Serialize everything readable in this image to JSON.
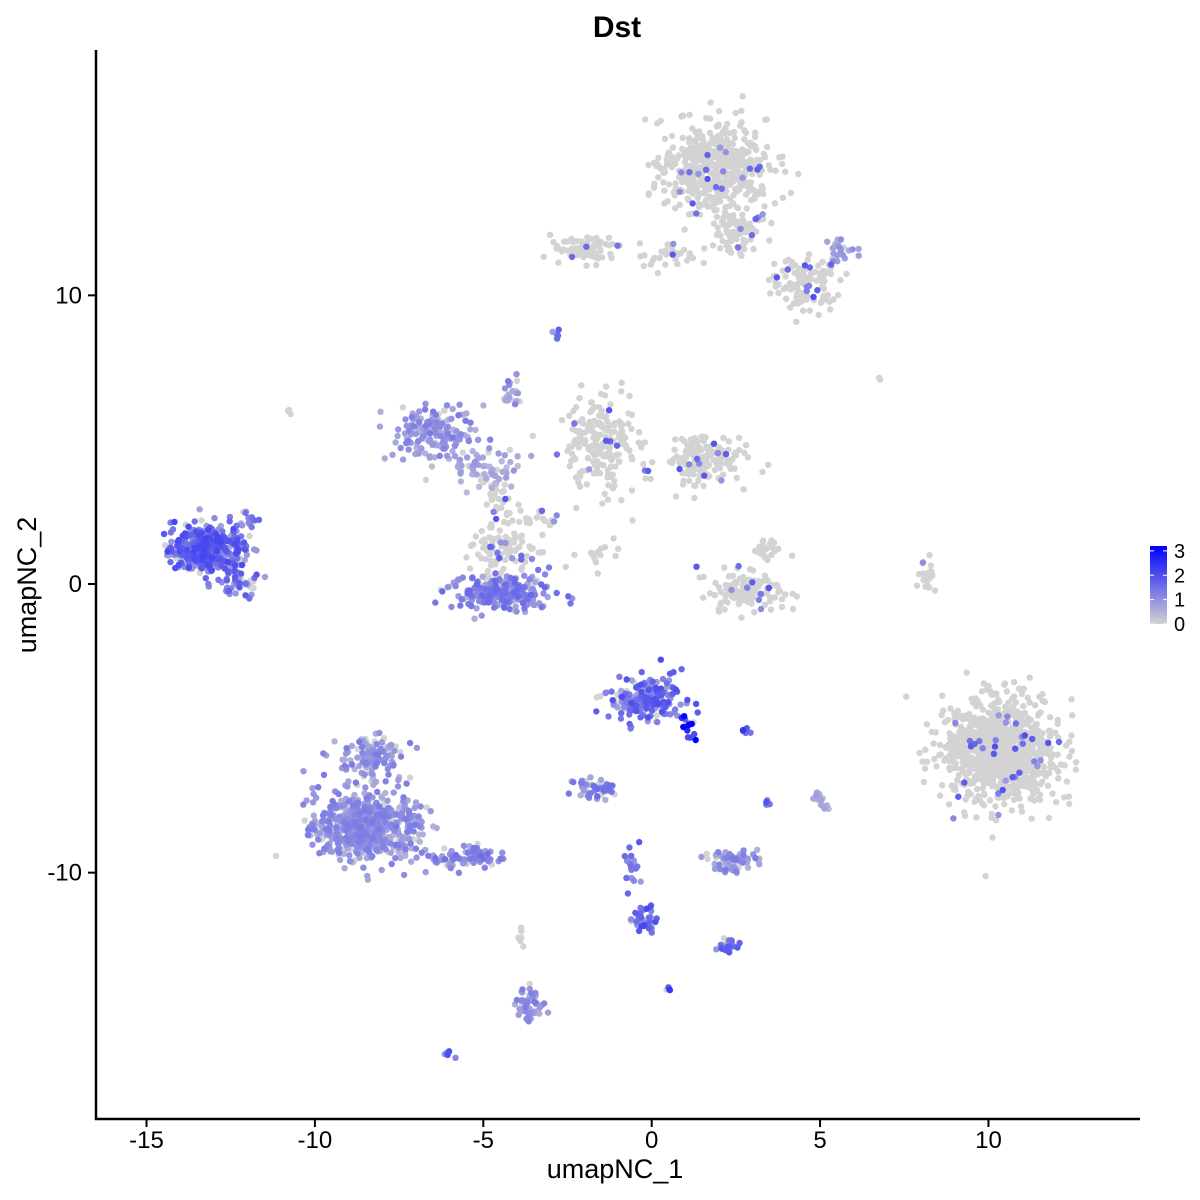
{
  "chart_data": {
    "type": "scatter",
    "title": "Dst",
    "xlabel": "umapNC_1",
    "ylabel": "umapNC_2",
    "xlim": [
      -16.5,
      14.5
    ],
    "ylim": [
      -18.5,
      18.5
    ],
    "x_ticks": [
      -15,
      -10,
      -5,
      0,
      5,
      10
    ],
    "x_tick_labels": [
      "-15",
      "-10",
      "-5",
      "0",
      "5",
      "10"
    ],
    "y_ticks": [
      -10,
      0,
      10
    ],
    "y_tick_labels": [
      "-10",
      "0",
      "10"
    ],
    "grid": false,
    "color_scale": {
      "low_color": "#d3d3d3",
      "high_color": "#0000ff",
      "min": 0,
      "max": 3.2,
      "legend_ticks": [
        0,
        1,
        2,
        3
      ],
      "legend_labels": [
        "0",
        "1",
        "2",
        "3"
      ],
      "legend_position": "right"
    },
    "clusters": [
      {
        "cx": 1.8,
        "cy": 14.5,
        "sx": 1.3,
        "sy": 1.3,
        "n": 480,
        "expr": 0.05
      },
      {
        "cx": 2.6,
        "cy": 12.2,
        "sx": 0.7,
        "sy": 0.8,
        "n": 90,
        "expr": 0.1
      },
      {
        "cx": 4.5,
        "cy": 10.4,
        "sx": 0.9,
        "sy": 0.8,
        "n": 120,
        "expr": 0.3
      },
      {
        "cx": 5.6,
        "cy": 11.6,
        "sx": 0.4,
        "sy": 0.4,
        "n": 25,
        "expr": 0.8
      },
      {
        "cx": -2.0,
        "cy": 11.6,
        "sx": 0.8,
        "sy": 0.4,
        "n": 80,
        "expr": 0.08
      },
      {
        "cx": 0.5,
        "cy": 11.4,
        "sx": 1.0,
        "sy": 0.4,
        "n": 30,
        "expr": 0.05
      },
      {
        "cx": -1.5,
        "cy": 5.0,
        "sx": 0.9,
        "sy": 1.4,
        "n": 200,
        "expr": 0.05
      },
      {
        "cx": 1.5,
        "cy": 4.3,
        "sx": 1.1,
        "sy": 0.7,
        "n": 160,
        "expr": 0.08
      },
      {
        "cx": -6.5,
        "cy": 5.2,
        "sx": 1.0,
        "sy": 0.8,
        "n": 150,
        "expr": 1.0
      },
      {
        "cx": -5.0,
        "cy": 4.0,
        "sx": 1.0,
        "sy": 0.6,
        "n": 60,
        "expr": 0.7
      },
      {
        "cx": -4.5,
        "cy": -0.3,
        "sx": 1.2,
        "sy": 0.5,
        "n": 280,
        "expr": 1.2
      },
      {
        "cx": -4.4,
        "cy": 1.2,
        "sx": 1.0,
        "sy": 0.6,
        "n": 80,
        "expr": 0.4
      },
      {
        "cx": -4.6,
        "cy": 2.8,
        "sx": 0.3,
        "sy": 0.8,
        "n": 30,
        "expr": 0.2
      },
      {
        "cx": -13.2,
        "cy": 1.2,
        "sx": 0.9,
        "sy": 0.7,
        "n": 450,
        "expr": 1.6
      },
      {
        "cx": -12.3,
        "cy": 0.0,
        "sx": 0.4,
        "sy": 0.3,
        "n": 40,
        "expr": 1.4
      },
      {
        "cx": -12.0,
        "cy": 2.2,
        "sx": 0.3,
        "sy": 0.4,
        "n": 15,
        "expr": 1.2
      },
      {
        "cx": 2.8,
        "cy": -0.3,
        "sx": 0.9,
        "sy": 0.6,
        "n": 130,
        "expr": 0.1
      },
      {
        "cx": 3.4,
        "cy": 1.2,
        "sx": 0.3,
        "sy": 0.4,
        "n": 25,
        "expr": 0.1
      },
      {
        "cx": 8.2,
        "cy": 0.2,
        "sx": 0.2,
        "sy": 0.6,
        "n": 20,
        "expr": 0.05
      },
      {
        "cx": 10.4,
        "cy": -5.8,
        "sx": 1.4,
        "sy": 1.5,
        "n": 950,
        "expr": 0.05
      },
      {
        "cx": -0.2,
        "cy": -4.0,
        "sx": 0.9,
        "sy": 0.6,
        "n": 200,
        "expr": 1.5
      },
      {
        "cx": 1.1,
        "cy": -5.0,
        "sx": 0.2,
        "sy": 0.4,
        "n": 15,
        "expr": 3.0
      },
      {
        "cx": -8.5,
        "cy": -8.4,
        "sx": 1.3,
        "sy": 1.0,
        "n": 620,
        "expr": 1.0
      },
      {
        "cx": -8.3,
        "cy": -6.0,
        "sx": 0.8,
        "sy": 0.6,
        "n": 120,
        "expr": 1.0
      },
      {
        "cx": -5.5,
        "cy": -9.5,
        "sx": 0.9,
        "sy": 0.3,
        "n": 90,
        "expr": 1.1
      },
      {
        "cx": -1.7,
        "cy": -7.1,
        "sx": 0.5,
        "sy": 0.3,
        "n": 50,
        "expr": 1.2
      },
      {
        "cx": 2.4,
        "cy": -9.6,
        "sx": 0.6,
        "sy": 0.3,
        "n": 70,
        "expr": 1.0
      },
      {
        "cx": -0.2,
        "cy": -11.6,
        "sx": 0.3,
        "sy": 0.4,
        "n": 40,
        "expr": 1.6
      },
      {
        "cx": -0.6,
        "cy": -9.8,
        "sx": 0.2,
        "sy": 0.6,
        "n": 20,
        "expr": 1.6
      },
      {
        "cx": 2.3,
        "cy": -12.5,
        "sx": 0.3,
        "sy": 0.2,
        "n": 25,
        "expr": 1.4
      },
      {
        "cx": -3.6,
        "cy": -14.6,
        "sx": 0.3,
        "sy": 0.5,
        "n": 50,
        "expr": 1.0
      },
      {
        "cx": 5.0,
        "cy": -7.5,
        "sx": 0.2,
        "sy": 0.3,
        "n": 15,
        "expr": 0.6
      },
      {
        "cx": 2.8,
        "cy": -5.1,
        "sx": 0.1,
        "sy": 0.1,
        "n": 6,
        "expr": 1.8
      },
      {
        "cx": 3.4,
        "cy": -7.6,
        "sx": 0.1,
        "sy": 0.1,
        "n": 6,
        "expr": 1.8
      },
      {
        "cx": 0.5,
        "cy": -14.0,
        "sx": 0.1,
        "sy": 0.1,
        "n": 5,
        "expr": 1.8
      },
      {
        "cx": -6.0,
        "cy": -16.3,
        "sx": 0.15,
        "sy": 0.1,
        "n": 6,
        "expr": 1.6
      },
      {
        "cx": -3.5,
        "cy": 2.3,
        "sx": 0.8,
        "sy": 0.4,
        "n": 20,
        "expr": 0.2
      },
      {
        "cx": -1.5,
        "cy": 1.0,
        "sx": 0.8,
        "sy": 0.4,
        "n": 15,
        "expr": 0.05
      },
      {
        "cx": -4.2,
        "cy": 6.8,
        "sx": 0.2,
        "sy": 0.5,
        "n": 20,
        "expr": 1.0
      },
      {
        "cx": -2.8,
        "cy": 8.7,
        "sx": 0.1,
        "sy": 0.2,
        "n": 5,
        "expr": 1.5
      },
      {
        "cx": -10.8,
        "cy": 6.0,
        "sx": 0.1,
        "sy": 0.1,
        "n": 3,
        "expr": 0.1
      },
      {
        "cx": 6.8,
        "cy": 7.0,
        "sx": 0.1,
        "sy": 0.1,
        "n": 2,
        "expr": 0.1
      },
      {
        "cx": -3.9,
        "cy": -12.0,
        "sx": 0.1,
        "sy": 0.4,
        "n": 6,
        "expr": 0.5
      }
    ]
  }
}
